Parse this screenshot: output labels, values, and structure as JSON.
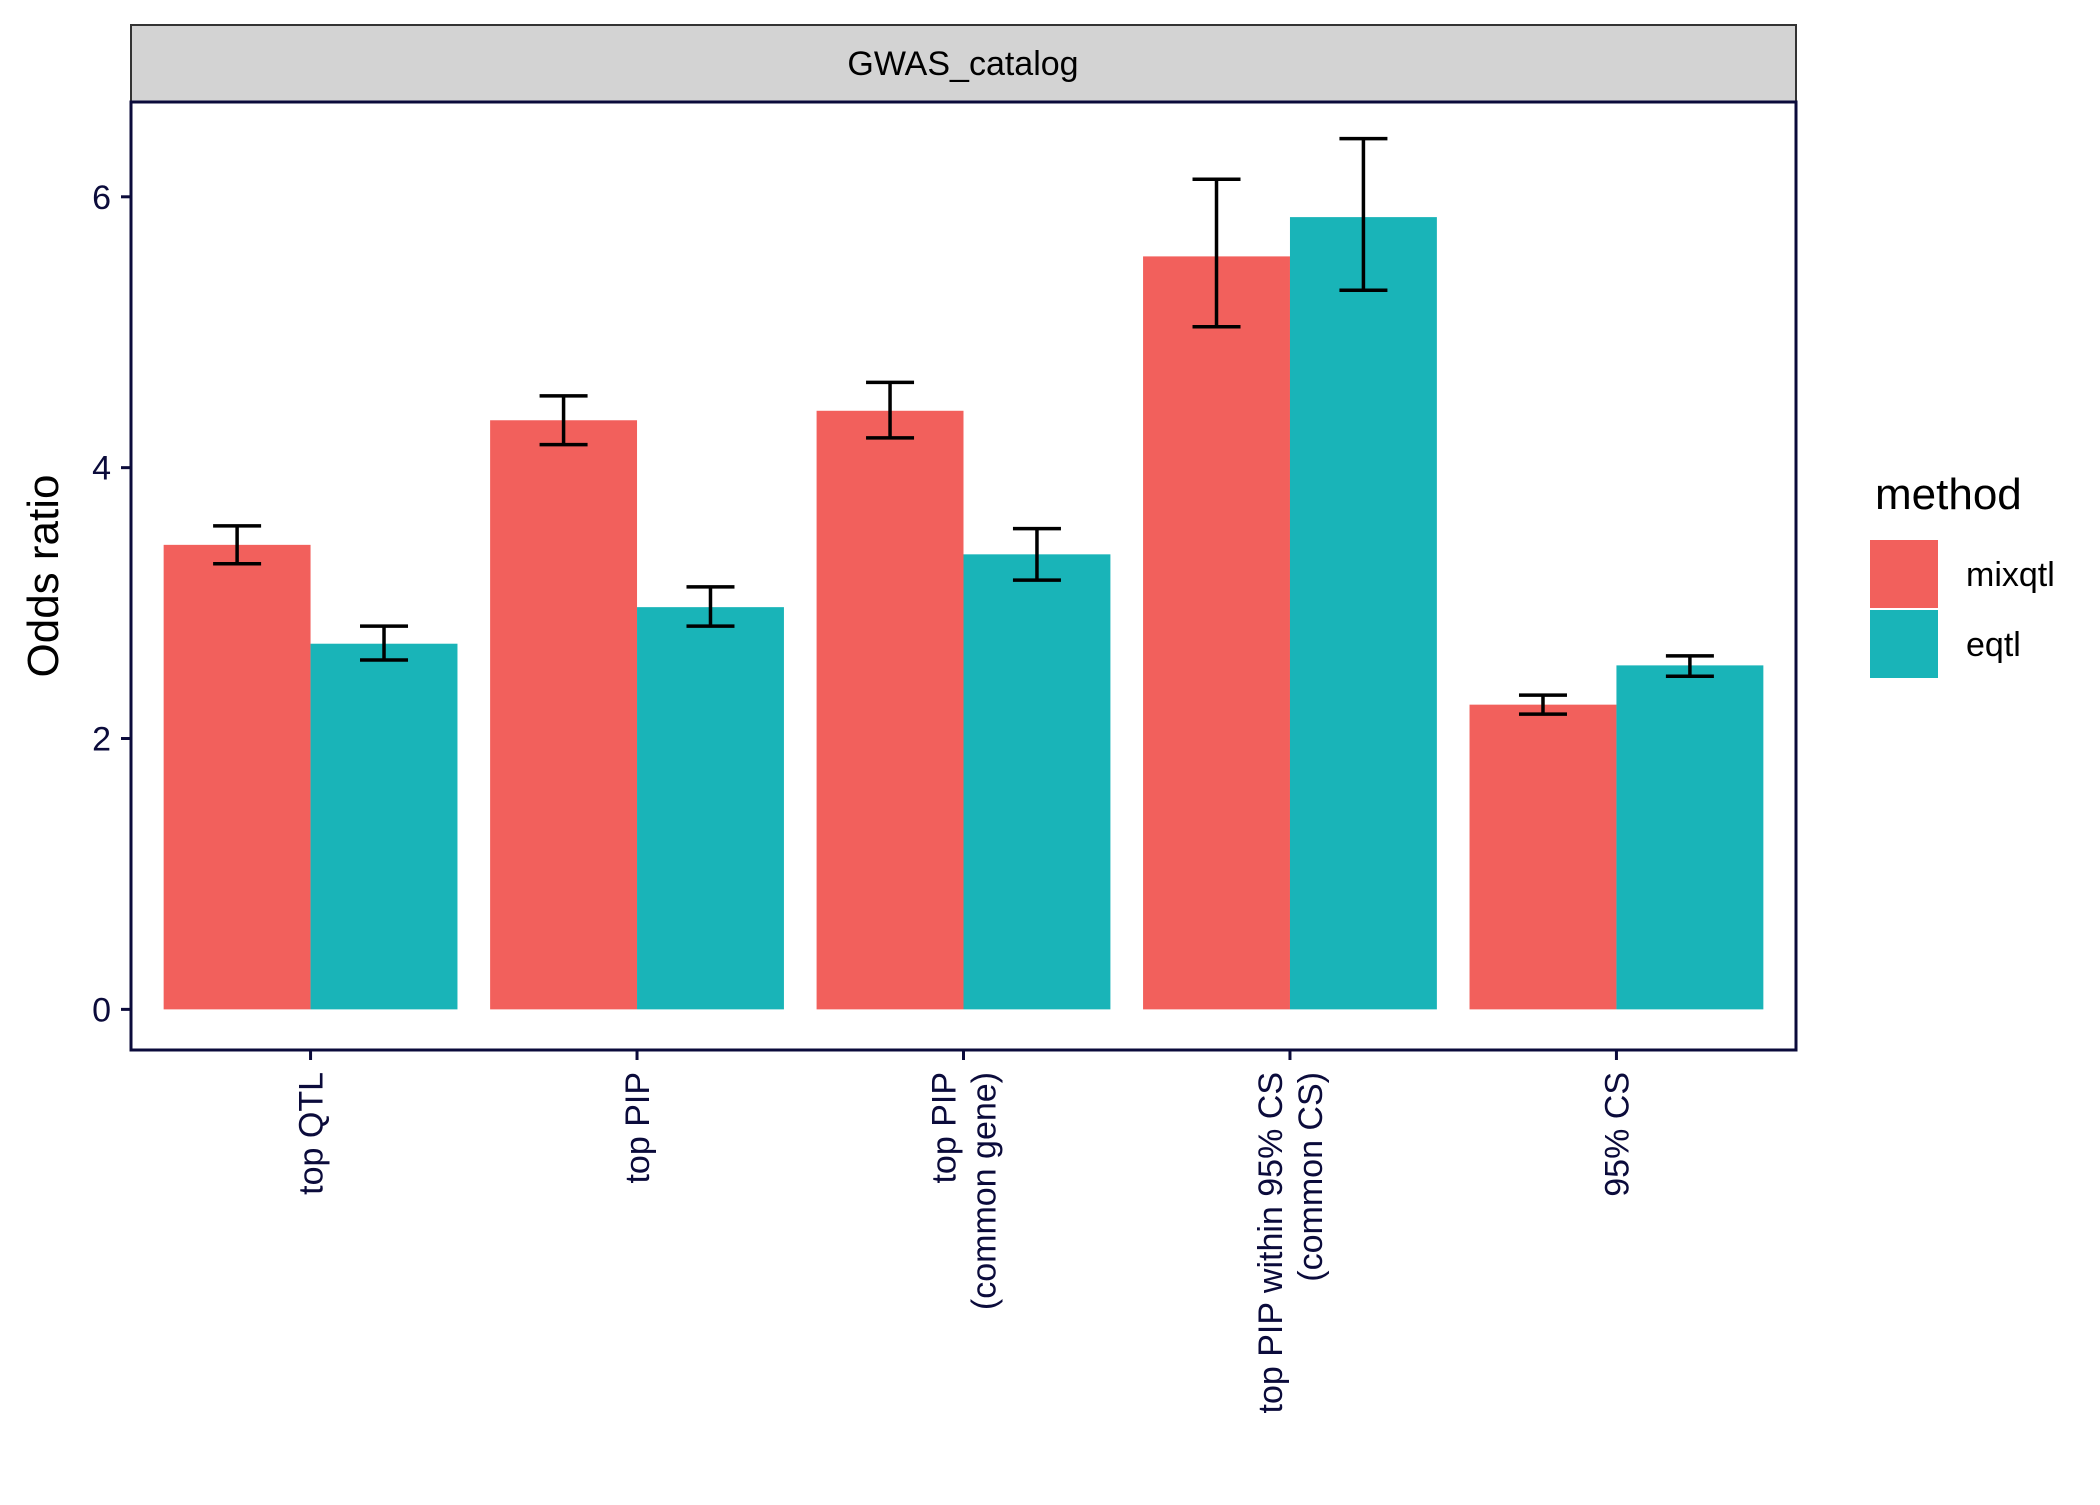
{
  "chart_data": {
    "type": "bar",
    "facet_label": "GWAS_catalog",
    "ylabel": "Odds ratio",
    "xlabel": "",
    "ylim": [
      -0.3,
      6.7
    ],
    "yticks": [
      0,
      2,
      4,
      6
    ],
    "grid": false,
    "legend": {
      "title": "method",
      "position": "right"
    },
    "categories": [
      [
        "top QTL"
      ],
      [
        "top PIP"
      ],
      [
        "top PIP",
        "(common gene)"
      ],
      [
        "top PIP within 95% CS",
        "(common CS)"
      ],
      [
        "95% CS"
      ]
    ],
    "series": [
      {
        "name": "mixqtl",
        "color": "#F2605C",
        "values": [
          3.43,
          4.35,
          4.42,
          5.56,
          2.25
        ],
        "error_low": [
          3.29,
          4.17,
          4.22,
          5.04,
          2.18
        ],
        "error_high": [
          3.57,
          4.53,
          4.63,
          6.13,
          2.32
        ]
      },
      {
        "name": "eqtl",
        "color": "#19B4B8",
        "values": [
          2.7,
          2.97,
          3.36,
          5.85,
          2.54
        ],
        "error_low": [
          2.58,
          2.83,
          3.17,
          5.31,
          2.46
        ],
        "error_high": [
          2.83,
          3.12,
          3.55,
          6.43,
          2.61
        ]
      }
    ]
  }
}
